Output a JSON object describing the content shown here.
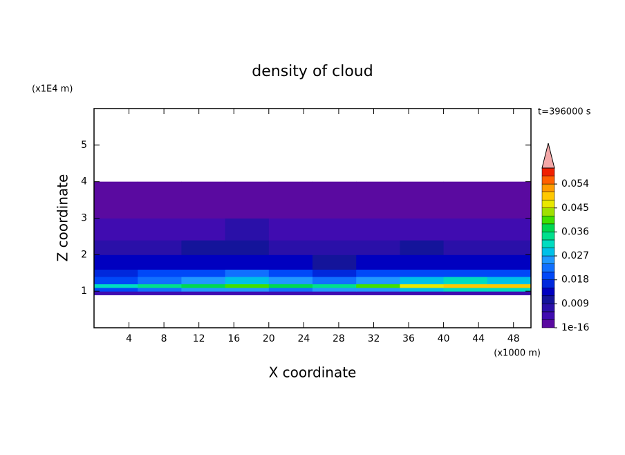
{
  "chart_data": {
    "type": "contourf",
    "title": "density of cloud",
    "time_label": "t=396000 s",
    "x_label": "X coordinate",
    "x_unit": "(x1000 m)",
    "y_label": "Z coordinate",
    "y_unit": "(x1E4 m)",
    "xlim": [
      0,
      50
    ],
    "ylim": [
      0,
      6
    ],
    "xticks": [
      4,
      8,
      12,
      16,
      20,
      24,
      28,
      32,
      36,
      40,
      44,
      48
    ],
    "yticks": [
      1,
      2,
      3,
      4,
      5
    ],
    "x_edges": [
      0,
      5,
      10,
      15,
      20,
      25,
      30,
      35,
      40,
      45,
      50
    ],
    "z_edges": [
      0.9,
      1.0,
      1.1,
      1.2,
      1.4,
      1.6,
      2.0,
      2.4,
      3.0,
      4.0
    ],
    "values": [
      [
        0.004,
        0.004,
        0.004,
        0.004,
        0.004,
        0.004,
        0.004,
        0.004,
        0.004,
        0.004
      ],
      [
        0.02,
        0.022,
        0.024,
        0.026,
        0.022,
        0.024,
        0.026,
        0.028,
        0.03,
        0.03
      ],
      [
        0.03,
        0.033,
        0.036,
        0.04,
        0.036,
        0.034,
        0.04,
        0.045,
        0.048,
        0.05
      ],
      [
        0.02,
        0.022,
        0.025,
        0.028,
        0.024,
        0.022,
        0.025,
        0.028,
        0.03,
        0.028
      ],
      [
        0.016,
        0.018,
        0.02,
        0.022,
        0.018,
        0.016,
        0.018,
        0.02,
        0.02,
        0.018
      ],
      [
        0.012,
        0.012,
        0.013,
        0.014,
        0.012,
        0.011,
        0.012,
        0.013,
        0.012,
        0.012
      ],
      [
        0.008,
        0.008,
        0.009,
        0.009,
        0.008,
        0.008,
        0.008,
        0.009,
        0.008,
        0.008
      ],
      [
        0.005,
        0.005,
        0.005,
        0.006,
        0.005,
        0.005,
        0.005,
        0.005,
        0.005,
        0.005
      ],
      [
        0.002,
        0.002,
        0.002,
        0.002,
        0.002,
        0.002,
        0.002,
        0.002,
        0.002,
        0.002
      ]
    ],
    "clim": [
      0,
      0.06
    ],
    "colorbar_ticks": [
      1e-16,
      0.009,
      0.018,
      0.027,
      0.036,
      0.045,
      0.054
    ],
    "colors": [
      "#5a0aa0",
      "#400cb0",
      "#2a10a8",
      "#14149a",
      "#0000c0",
      "#0028dc",
      "#0048f8",
      "#1070ff",
      "#2098ff",
      "#00c0e8",
      "#00dcc0",
      "#00e08c",
      "#00d850",
      "#40e000",
      "#a0e000",
      "#e8e800",
      "#ffc800",
      "#ff9c00",
      "#ff6000",
      "#f02000"
    ],
    "extend_color": "#f4a8a8"
  }
}
